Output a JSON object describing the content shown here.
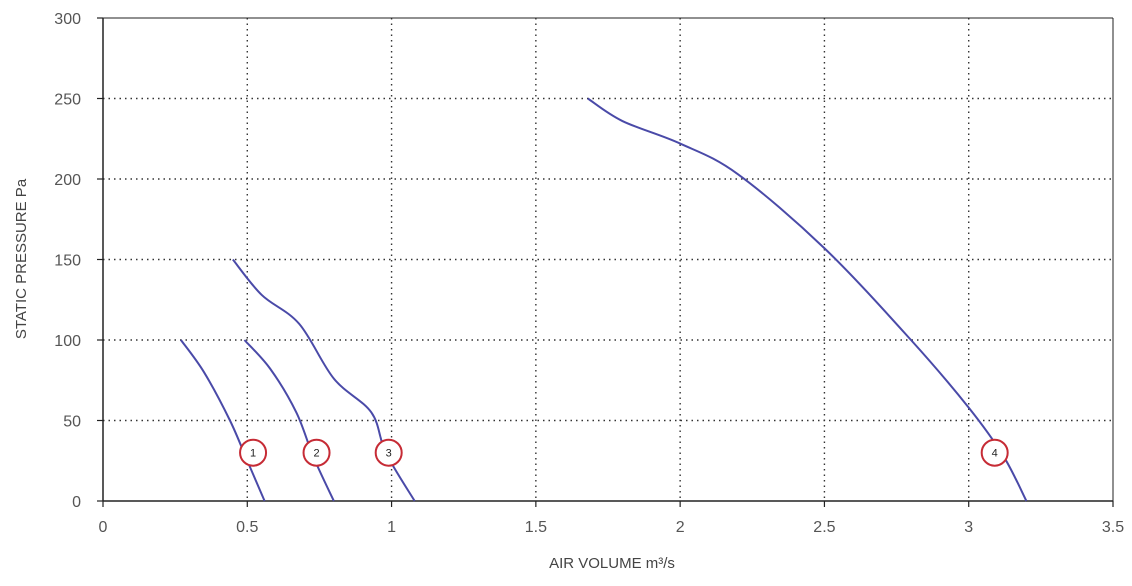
{
  "chart_data": {
    "type": "line",
    "title": "",
    "xlabel": "AIR VOLUME m³/s",
    "ylabel": "STATIC PRESSURE Pa",
    "xlim": [
      0,
      3.5
    ],
    "ylim": [
      0,
      300
    ],
    "x_ticks": [
      0,
      0.5,
      1,
      1.5,
      2,
      2.5,
      3,
      3.5
    ],
    "x_tick_labels": [
      "0",
      "0.5",
      "1",
      "1.5",
      "2",
      "2.5",
      "3",
      "3.5"
    ],
    "y_ticks": [
      0,
      50,
      100,
      150,
      200,
      250,
      300
    ],
    "y_tick_labels": [
      "0",
      "50",
      "100",
      "150",
      "200",
      "250",
      "300"
    ],
    "grid": true,
    "grid_style": "dotted",
    "line_color": "#4a4aa8",
    "marker_color": "#c62b35",
    "series": [
      {
        "marker": "1",
        "marker_at": [
          0.52,
          30
        ],
        "points": [
          [
            0.27,
            100
          ],
          [
            0.35,
            80
          ],
          [
            0.44,
            50
          ],
          [
            0.5,
            25
          ],
          [
            0.56,
            0
          ]
        ]
      },
      {
        "marker": "2",
        "marker_at": [
          0.74,
          30
        ],
        "points": [
          [
            0.49,
            100
          ],
          [
            0.58,
            82
          ],
          [
            0.67,
            55
          ],
          [
            0.73,
            27
          ],
          [
            0.8,
            0
          ]
        ]
      },
      {
        "marker": "3",
        "marker_at": [
          0.99,
          30
        ],
        "points": [
          [
            0.45,
            150
          ],
          [
            0.55,
            128
          ],
          [
            0.68,
            110
          ],
          [
            0.8,
            76
          ],
          [
            0.93,
            55
          ],
          [
            0.98,
            30
          ],
          [
            1.08,
            0
          ]
        ]
      },
      {
        "marker": "4",
        "marker_at": [
          3.09,
          30
        ],
        "points": [
          [
            1.68,
            250
          ],
          [
            1.8,
            236
          ],
          [
            2.0,
            222
          ],
          [
            2.2,
            203
          ],
          [
            2.5,
            157
          ],
          [
            2.8,
            100
          ],
          [
            3.0,
            58
          ],
          [
            3.12,
            28
          ],
          [
            3.2,
            0
          ]
        ]
      }
    ]
  }
}
